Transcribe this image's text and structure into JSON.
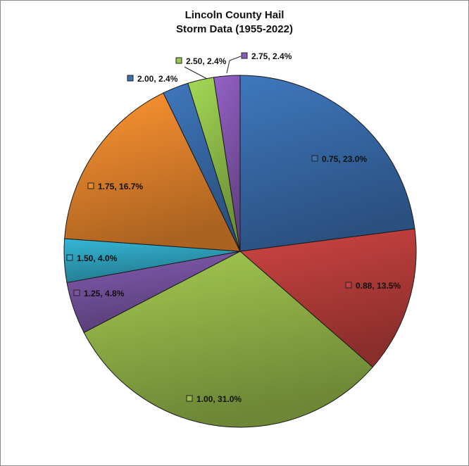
{
  "chart_data": {
    "type": "pie",
    "title_lines": [
      "Lincoln County Hail",
      "Storm Data (1955-2022)"
    ],
    "slices": [
      {
        "category": "0.75",
        "percent": 23.0,
        "label": "0.75, 23.0%",
        "color": "#3a6fb0"
      },
      {
        "category": "0.88",
        "percent": 13.5,
        "label": "0.88, 13.5%",
        "color": "#c0403d"
      },
      {
        "category": "1.00",
        "percent": 31.0,
        "label": "1.00, 31.0%",
        "color": "#98bb4b"
      },
      {
        "category": "1.25",
        "percent": 4.8,
        "label": "1.25, 4.8%",
        "color": "#7a55a5"
      },
      {
        "category": "1.50",
        "percent": 4.0,
        "label": "1.50, 4.0%",
        "color": "#31a9c7"
      },
      {
        "category": "1.75",
        "percent": 16.7,
        "label": "1.75, 16.7%",
        "color": "#ef8a2e"
      },
      {
        "category": "2.00",
        "percent": 2.4,
        "label": "2.00, 2.4%",
        "color": "#3a6fb0"
      },
      {
        "category": "2.50",
        "percent": 2.4,
        "label": "2.50, 2.4%",
        "color": "#98c94f"
      },
      {
        "category": "2.75",
        "percent": 2.4,
        "label": "2.75, 2.4%",
        "color": "#8a5bb8"
      }
    ]
  }
}
